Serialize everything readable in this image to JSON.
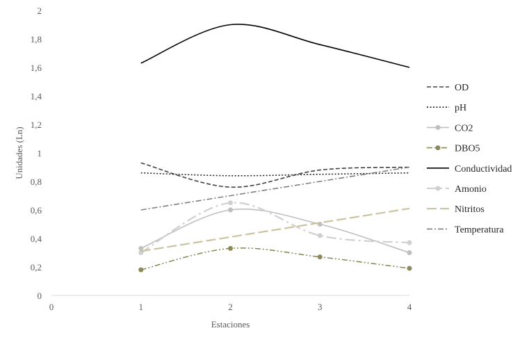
{
  "chart_data": {
    "type": "line",
    "xlabel": "Estaciones",
    "ylabel": "Unidades  (Ln)",
    "xlim": [
      0,
      4
    ],
    "ylim": [
      0,
      2
    ],
    "x_ticks": [
      "0",
      "1",
      "2",
      "3",
      "4"
    ],
    "y_ticks": [
      "0",
      "0,2",
      "0,4",
      "0,6",
      "0,8",
      "1",
      "1,2",
      "1,4",
      "1,6",
      "1,8",
      "2"
    ],
    "grid": false,
    "legend_position": "right",
    "x": [
      1,
      2,
      3,
      4
    ],
    "series": [
      {
        "name": "OD",
        "values": [
          0.93,
          0.76,
          0.88,
          0.9
        ],
        "color": "#404040",
        "style": "dash",
        "smooth": true
      },
      {
        "name": "pH",
        "values": [
          0.86,
          0.84,
          0.85,
          0.86
        ],
        "color": "#262626",
        "style": "dot",
        "smooth": true
      },
      {
        "name": "CO2",
        "values": [
          0.33,
          0.6,
          0.5,
          0.3
        ],
        "color": "#bfbfbf",
        "style": "solid",
        "marker": true,
        "smooth": true
      },
      {
        "name": "DBO5",
        "values": [
          0.18,
          0.33,
          0.27,
          0.19
        ],
        "color": "#8c8a5a",
        "style": "dashdotdot",
        "marker": true,
        "smooth": true
      },
      {
        "name": "Conductividad",
        "values": [
          1.63,
          1.9,
          1.76,
          1.6
        ],
        "color": "#000000",
        "style": "solid",
        "smooth": true
      },
      {
        "name": "Amonio",
        "values": [
          0.3,
          0.65,
          0.42,
          0.37
        ],
        "color": "#d0d0d0",
        "style": "longdashdot",
        "marker": true,
        "smooth": true
      },
      {
        "name": "Nitritos",
        "values": [
          0.31,
          0.41,
          0.51,
          0.61
        ],
        "color": "#c9c3a0",
        "style": "longdash",
        "smooth": false
      },
      {
        "name": "Temperatura",
        "values": [
          0.6,
          0.7,
          0.8,
          0.9
        ],
        "color": "#7f7f7f",
        "style": "dashdot",
        "smooth": false
      }
    ]
  }
}
